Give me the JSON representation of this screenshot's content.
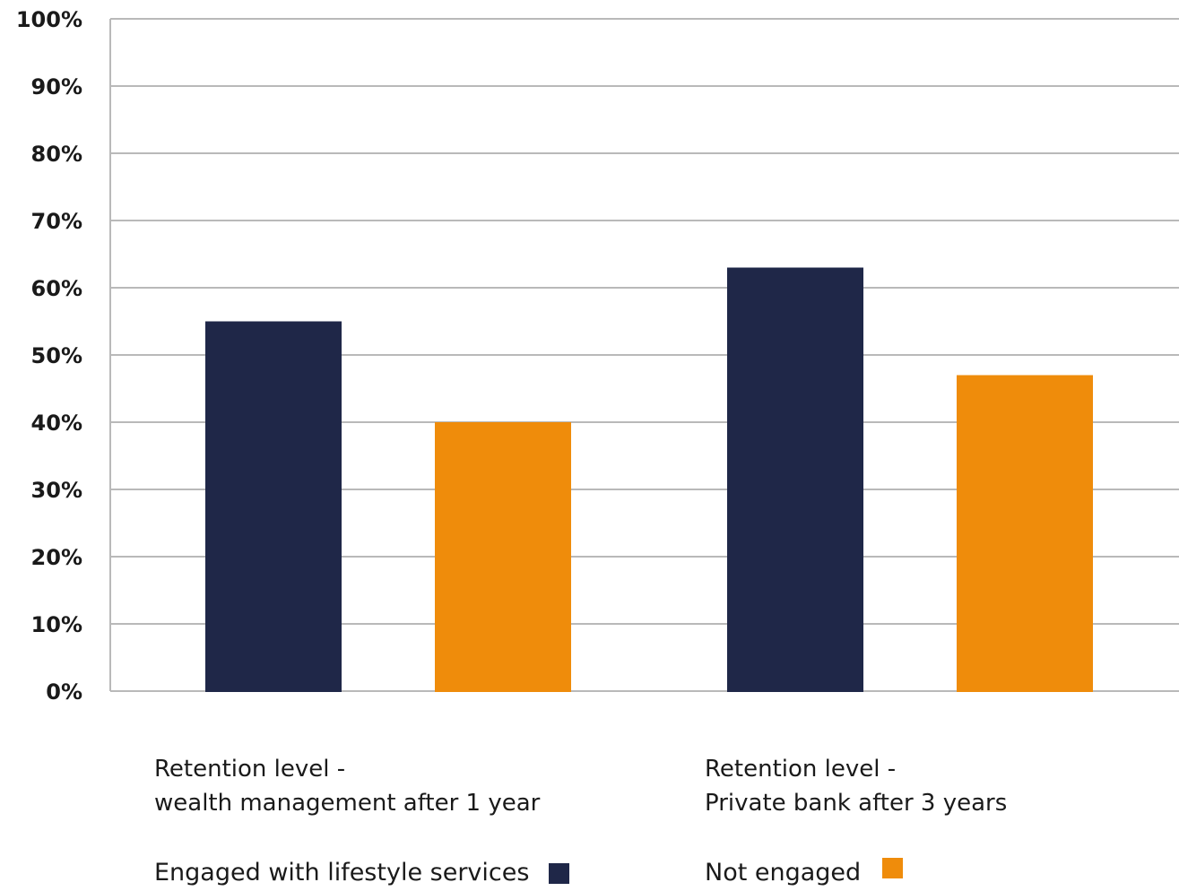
{
  "chart_data": {
    "type": "bar",
    "categories": [
      [
        "Retention level -",
        "wealth management after 1 year"
      ],
      [
        "Retention level -",
        "Private bank after 3 years"
      ]
    ],
    "series": [
      {
        "name": "Engaged with lifestyle services",
        "color": "#1f2748",
        "values": [
          55,
          63
        ]
      },
      {
        "name": "Not engaged",
        "color": "#ef8c0b",
        "values": [
          40,
          47
        ]
      }
    ],
    "yticks": [
      "0%",
      "10%",
      "20%",
      "30%",
      "40%",
      "50%",
      "60%",
      "70%",
      "80%",
      "90%",
      "100%"
    ],
    "ylim": [
      0,
      100
    ],
    "grid": true,
    "legend_position": "bottom",
    "title": "",
    "xlabel": "",
    "ylabel": ""
  }
}
